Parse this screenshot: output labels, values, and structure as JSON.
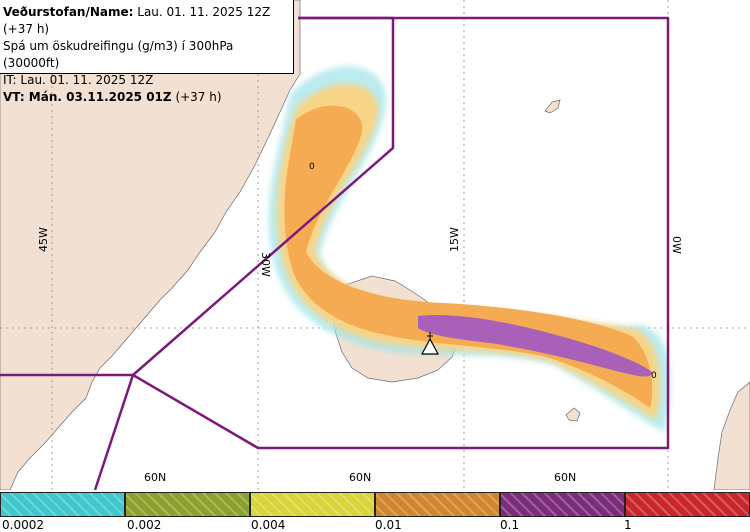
{
  "info": {
    "line1_label": "Veðurstofan/Name:",
    "line1_value": "Lau. 01. 11. 2025 12Z (+37 h)",
    "line2": "Spá um öskudreifingu (g/m3) í 300hPa (30000ft)",
    "line3": "IT: Lau. 01. 11. 2025 12Z",
    "line4_label": "VT: Mán. 03.11.2025 01Z",
    "line4_value": "(+37 h)"
  },
  "map": {
    "longitude_labels": [
      "45W",
      "30W",
      "15W",
      "0W"
    ],
    "latitude_labels": [
      "60N",
      "60N",
      "60N"
    ],
    "contour_labels": [
      "0",
      "0"
    ],
    "colors": {
      "land": "#f2e1d2",
      "sea": "#ffffff",
      "boundary": "#7b1a7b",
      "ash_high": "#a960b8",
      "ash_mid": "#f3a94e",
      "ash_low": "#f7d486",
      "ash_edge": "#9fe3e8"
    },
    "volcano_icon": "volcano-triangle-icon"
  },
  "legend": {
    "colors": [
      "#3ec8cc",
      "#8ca12c",
      "#d8d43a",
      "#d0862d",
      "#7b2d7b",
      "#c9262c"
    ],
    "ticks": [
      "0.0002",
      "0.002",
      "0.004",
      "0.01",
      "0.1",
      "1"
    ]
  }
}
